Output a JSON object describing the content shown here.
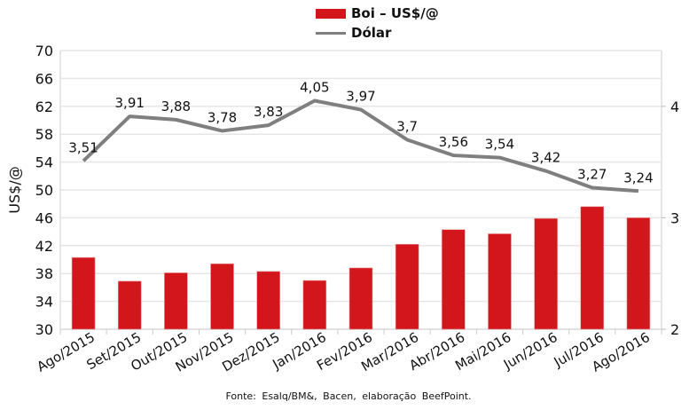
{
  "chart_data": {
    "type": "bar+line",
    "categories": [
      "Ago/2015",
      "Set/2015",
      "Out/2015",
      "Nov/2015",
      "Dez/2015",
      "Jan/2016",
      "Fev/2016",
      "Mar/2016",
      "Abr/2016",
      "Mai/2016",
      "Jun/2016",
      "Jul/2016",
      "Ago/2016"
    ],
    "series": [
      {
        "name": "Boi – US$/@",
        "type": "bar",
        "axis": "left",
        "color": "#d2161b",
        "values": [
          40.3,
          36.9,
          38.1,
          39.4,
          38.3,
          37.0,
          38.8,
          42.2,
          44.3,
          43.7,
          45.9,
          47.6,
          46.0
        ]
      },
      {
        "name": "Dólar",
        "type": "line",
        "axis": "right",
        "color": "#7f7f7f",
        "values": [
          3.51,
          3.91,
          3.88,
          3.78,
          3.83,
          4.05,
          3.97,
          3.7,
          3.56,
          3.54,
          3.42,
          3.27,
          3.24
        ],
        "labels": [
          "3,51",
          "3,91",
          "3,88",
          "3,78",
          "3,83",
          "4,05",
          "3,97",
          "3,7",
          "3,56",
          "3,54",
          "3,42",
          "3,27",
          "3,24"
        ]
      }
    ],
    "ylabel": "US$/@",
    "ylim": [
      30,
      70
    ],
    "yticks": [
      30,
      34,
      38,
      42,
      46,
      50,
      54,
      58,
      62,
      66,
      70
    ],
    "y2lim": [
      2,
      4.5
    ],
    "y2ticks": [
      2,
      3,
      4
    ],
    "grid": true,
    "legend": "top-center",
    "source": "Fonte: Esalq/BM&, Bacen, elaboração BeefPoint."
  }
}
